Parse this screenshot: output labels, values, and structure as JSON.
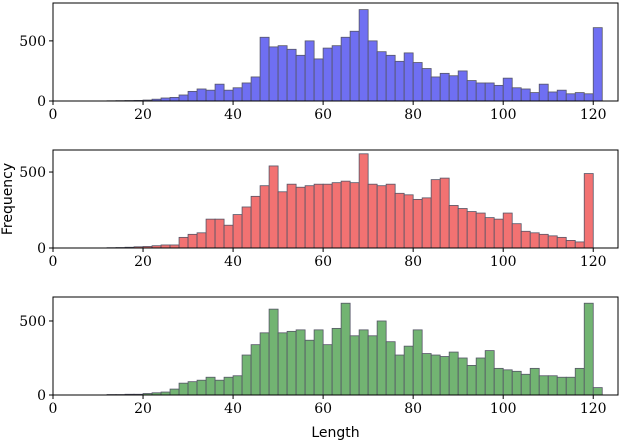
{
  "chart_data": [
    {
      "type": "histogram",
      "color": "#6f6ff2",
      "edgecolor": "#555566",
      "bins": [
        10,
        12,
        14,
        16,
        18,
        20,
        22,
        24,
        26,
        28,
        30,
        32,
        34,
        36,
        38,
        40,
        42,
        44,
        46,
        48,
        50,
        52,
        54,
        56,
        58,
        60,
        62,
        64,
        66,
        68,
        70,
        72,
        74,
        76,
        78,
        80,
        82,
        84,
        86,
        88,
        90,
        92,
        94,
        96,
        98,
        100,
        102,
        104,
        106,
        108,
        110,
        112,
        114,
        116,
        118,
        120,
        122
      ],
      "values": [
        0,
        2,
        3,
        4,
        5,
        8,
        15,
        25,
        30,
        50,
        80,
        100,
        90,
        140,
        90,
        110,
        150,
        200,
        530,
        450,
        460,
        430,
        380,
        500,
        350,
        440,
        460,
        530,
        580,
        760,
        500,
        410,
        380,
        330,
        400,
        320,
        270,
        200,
        230,
        210,
        250,
        170,
        150,
        150,
        130,
        190,
        110,
        100,
        70,
        140,
        75,
        90,
        60,
        70,
        60,
        610
      ],
      "xlim": [
        0,
        125.5
      ],
      "xticks": [
        0,
        20,
        40,
        60,
        80,
        100,
        120
      ],
      "ylim": [
        0,
        815
      ],
      "yticks": [
        0,
        500
      ]
    },
    {
      "type": "histogram",
      "color": "#f27272",
      "edgecolor": "#555566",
      "ylabel": "Frequency",
      "bins": [
        10,
        12,
        14,
        16,
        18,
        20,
        22,
        24,
        26,
        28,
        30,
        32,
        34,
        36,
        38,
        40,
        42,
        44,
        46,
        48,
        50,
        52,
        54,
        56,
        58,
        60,
        62,
        64,
        66,
        68,
        70,
        72,
        74,
        76,
        78,
        80,
        82,
        84,
        86,
        88,
        90,
        92,
        94,
        96,
        98,
        100,
        102,
        104,
        106,
        108,
        110,
        112,
        114,
        116,
        118,
        120,
        122
      ],
      "values": [
        0,
        2,
        3,
        5,
        8,
        10,
        15,
        20,
        20,
        70,
        90,
        100,
        190,
        190,
        150,
        220,
        270,
        340,
        410,
        540,
        370,
        420,
        400,
        410,
        420,
        420,
        430,
        440,
        430,
        620,
        420,
        410,
        420,
        360,
        350,
        320,
        330,
        450,
        460,
        280,
        260,
        240,
        230,
        200,
        190,
        230,
        160,
        110,
        100,
        90,
        80,
        70,
        50,
        40,
        490,
        0
      ],
      "xlim": [
        0,
        125.5
      ],
      "xticks": [
        0,
        20,
        40,
        60,
        80,
        100,
        120
      ],
      "ylim": [
        0,
        645
      ],
      "yticks": [
        0,
        500
      ]
    },
    {
      "type": "histogram",
      "color": "#72b472",
      "edgecolor": "#555566",
      "xlabel": "Length",
      "bins": [
        10,
        12,
        14,
        16,
        18,
        20,
        22,
        24,
        26,
        28,
        30,
        32,
        34,
        36,
        38,
        40,
        42,
        44,
        46,
        48,
        50,
        52,
        54,
        56,
        58,
        60,
        62,
        64,
        66,
        68,
        70,
        72,
        74,
        76,
        78,
        80,
        82,
        84,
        86,
        88,
        90,
        92,
        94,
        96,
        98,
        100,
        102,
        104,
        106,
        108,
        110,
        112,
        114,
        116,
        118,
        120,
        122
      ],
      "values": [
        0,
        3,
        3,
        5,
        5,
        10,
        15,
        20,
        40,
        80,
        90,
        100,
        120,
        100,
        120,
        130,
        270,
        340,
        420,
        580,
        420,
        430,
        440,
        370,
        440,
        340,
        450,
        620,
        400,
        440,
        400,
        500,
        360,
        270,
        330,
        440,
        280,
        270,
        260,
        290,
        250,
        200,
        250,
        300,
        180,
        170,
        160,
        140,
        180,
        130,
        130,
        120,
        120,
        180,
        620,
        50
      ],
      "xlim": [
        0,
        125.5
      ],
      "xticks": [
        0,
        20,
        40,
        60,
        80,
        100,
        120
      ],
      "ylim": [
        0,
        662
      ],
      "yticks": [
        0,
        500
      ]
    }
  ]
}
